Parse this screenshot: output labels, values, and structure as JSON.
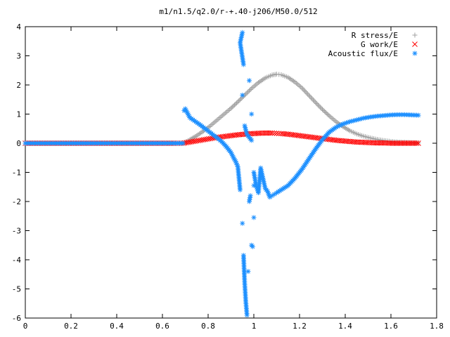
{
  "chart_data": {
    "type": "scatter",
    "title": "m1/n1.5/q2.0/r-+.40-j206/M50.0/512",
    "xlabel": "",
    "ylabel": "",
    "xlim": [
      0,
      1.8
    ],
    "ylim": [
      -6,
      4
    ],
    "xticks": [
      0,
      0.2,
      0.4,
      0.6,
      0.8,
      1,
      1.2,
      1.4,
      1.6,
      1.8
    ],
    "xtick_labels": [
      "0",
      "0.2",
      "0.4",
      "0.6",
      "0.8",
      "1",
      "1.2",
      "1.4",
      "1.6",
      "1.8"
    ],
    "yticks": [
      -6,
      -5,
      -4,
      -3,
      -2,
      -1,
      0,
      1,
      2,
      3,
      4
    ],
    "ytick_labels": [
      "-6",
      "-5",
      "-4",
      "-3",
      "-2",
      "-1",
      "0",
      "1",
      "2",
      "3",
      "4"
    ],
    "grid": false,
    "legend_position": "top-right",
    "series": [
      {
        "name": "R stress/E",
        "marker": "plus",
        "color": "#a0a0a0",
        "x": [
          0.0,
          0.05,
          0.1,
          0.15,
          0.2,
          0.25,
          0.3,
          0.35,
          0.4,
          0.45,
          0.5,
          0.55,
          0.6,
          0.65,
          0.69,
          0.72,
          0.75,
          0.78,
          0.81,
          0.84,
          0.87,
          0.9,
          0.93,
          0.96,
          0.99,
          1.02,
          1.05,
          1.08,
          1.1,
          1.12,
          1.15,
          1.18,
          1.21,
          1.24,
          1.27,
          1.3,
          1.33,
          1.36,
          1.39,
          1.42,
          1.45,
          1.48,
          1.51,
          1.54,
          1.57,
          1.6,
          1.63,
          1.66,
          1.69,
          1.72
        ],
        "y": [
          0,
          0,
          0,
          0,
          0,
          0,
          0,
          0,
          0,
          0,
          0,
          0,
          0,
          0,
          0,
          0.12,
          0.26,
          0.42,
          0.6,
          0.8,
          1.0,
          1.2,
          1.42,
          1.65,
          1.88,
          2.08,
          2.24,
          2.34,
          2.37,
          2.35,
          2.26,
          2.1,
          1.9,
          1.65,
          1.4,
          1.16,
          0.94,
          0.74,
          0.57,
          0.43,
          0.32,
          0.24,
          0.18,
          0.13,
          0.09,
          0.06,
          0.04,
          0.03,
          0.02,
          0.01
        ]
      },
      {
        "name": "G work/E",
        "marker": "cross",
        "color": "#ff0000",
        "x": [
          0.0,
          0.05,
          0.1,
          0.15,
          0.2,
          0.25,
          0.3,
          0.35,
          0.4,
          0.45,
          0.5,
          0.55,
          0.6,
          0.65,
          0.69,
          0.72,
          0.75,
          0.78,
          0.81,
          0.84,
          0.87,
          0.9,
          0.93,
          0.96,
          0.99,
          1.02,
          1.05,
          1.08,
          1.1,
          1.12,
          1.15,
          1.18,
          1.21,
          1.24,
          1.27,
          1.3,
          1.33,
          1.36,
          1.39,
          1.42,
          1.45,
          1.48,
          1.51,
          1.54,
          1.57,
          1.6,
          1.63,
          1.66,
          1.69,
          1.72
        ],
        "y": [
          0,
          0,
          0,
          0,
          0,
          0,
          0,
          0,
          0,
          0,
          0,
          0,
          0,
          0,
          0,
          0.04,
          0.08,
          0.12,
          0.16,
          0.2,
          0.23,
          0.26,
          0.29,
          0.31,
          0.33,
          0.34,
          0.35,
          0.35,
          0.34,
          0.33,
          0.31,
          0.28,
          0.25,
          0.22,
          0.19,
          0.16,
          0.13,
          0.1,
          0.08,
          0.06,
          0.04,
          0.03,
          0.02,
          0.01,
          0.01,
          0,
          0,
          0,
          0,
          0
        ]
      },
      {
        "name": "Acoustic flux/E",
        "marker": "asterisk",
        "color": "#1e90ff",
        "x": [
          0.0,
          0.05,
          0.1,
          0.15,
          0.2,
          0.25,
          0.3,
          0.35,
          0.4,
          0.45,
          0.5,
          0.55,
          0.6,
          0.65,
          0.69,
          0.695,
          0.7,
          0.72,
          0.74,
          0.76,
          0.78,
          0.8,
          0.82,
          0.84,
          0.86,
          0.88,
          0.9,
          0.91,
          0.92,
          0.93,
          0.94,
          0.95,
          0.955,
          0.96,
          0.965,
          0.97,
          0.975,
          0.98,
          0.985,
          0.99,
          0.995,
          1.0,
          1.0,
          0.99,
          0.97,
          0.96,
          0.95,
          0.955,
          0.94,
          0.95,
          0.98,
          0.99,
          1.0,
          1.01,
          1.02,
          1.03,
          1.04,
          1.05,
          1.06,
          1.07,
          1.08,
          1.09,
          1.1,
          1.12,
          1.15,
          1.18,
          1.21,
          1.24,
          1.27,
          1.3,
          1.33,
          1.36,
          1.39,
          1.42,
          1.45,
          1.48,
          1.51,
          1.54,
          1.57,
          1.6,
          1.63,
          1.66,
          1.69,
          1.72
        ],
        "y": [
          0,
          0,
          0,
          0,
          0,
          0,
          0,
          0,
          0,
          0,
          0,
          0,
          0,
          0,
          0,
          1.12,
          1.18,
          0.88,
          0.77,
          0.66,
          0.54,
          0.42,
          0.3,
          0.18,
          0.05,
          -0.12,
          -0.32,
          -0.48,
          -0.62,
          -0.8,
          -1.6,
          -2.75,
          -3.85,
          -4.8,
          -5.45,
          -5.9,
          -4.4,
          -2.0,
          -1.8,
          -3.5,
          -3.55,
          -2.55,
          -1.45,
          0.1,
          0.3,
          0.6,
          1.65,
          2.7,
          3.45,
          3.8,
          2.15,
          1.0,
          -1.0,
          -1.45,
          -1.7,
          -0.85,
          -1.2,
          -1.55,
          -1.65,
          -1.85,
          -1.8,
          -1.75,
          -1.7,
          -1.6,
          -1.45,
          -1.2,
          -0.9,
          -0.55,
          -0.2,
          0.12,
          0.38,
          0.55,
          0.66,
          0.74,
          0.8,
          0.86,
          0.9,
          0.93,
          0.95,
          0.97,
          0.98,
          0.98,
          0.97,
          0.96
        ]
      }
    ]
  }
}
